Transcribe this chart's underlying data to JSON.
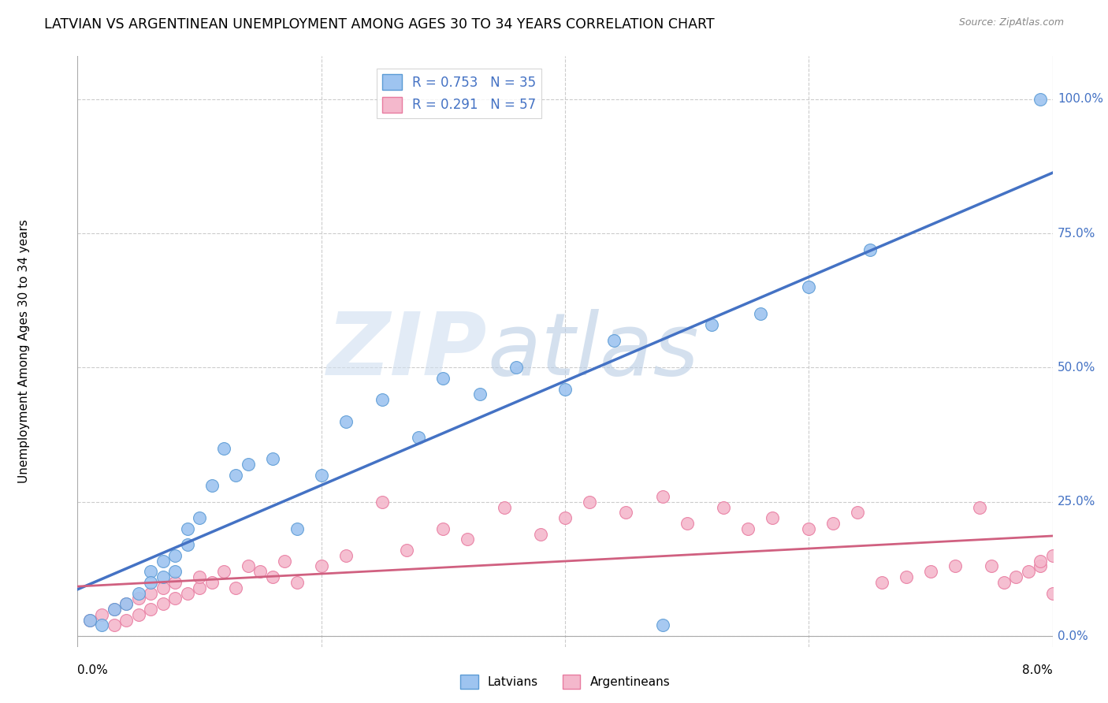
{
  "title": "LATVIAN VS ARGENTINEAN UNEMPLOYMENT AMONG AGES 30 TO 34 YEARS CORRELATION CHART",
  "source": "Source: ZipAtlas.com",
  "ylabel": "Unemployment Among Ages 30 to 34 years",
  "ytick_labels": [
    "0.0%",
    "25.0%",
    "50.0%",
    "75.0%",
    "100.0%"
  ],
  "ytick_values": [
    0.0,
    0.25,
    0.5,
    0.75,
    1.0
  ],
  "xlim": [
    0.0,
    0.08
  ],
  "ylim": [
    -0.02,
    1.08
  ],
  "latvian_fill_color": "#9ec4f0",
  "argentinean_fill_color": "#f4b8cc",
  "latvian_edge_color": "#5b9bd5",
  "argentinean_edge_color": "#e87ba0",
  "latvian_line_color": "#4472c4",
  "argentinean_line_color": "#d06080",
  "R_latvian": 0.753,
  "N_latvian": 35,
  "R_argentinean": 0.291,
  "N_argentinean": 57,
  "latvian_x": [
    0.001,
    0.002,
    0.003,
    0.004,
    0.005,
    0.006,
    0.006,
    0.007,
    0.007,
    0.008,
    0.008,
    0.009,
    0.009,
    0.01,
    0.011,
    0.012,
    0.013,
    0.014,
    0.016,
    0.018,
    0.02,
    0.022,
    0.025,
    0.028,
    0.03,
    0.033,
    0.036,
    0.04,
    0.044,
    0.048,
    0.052,
    0.056,
    0.06,
    0.065,
    0.079
  ],
  "latvian_y": [
    0.03,
    0.02,
    0.05,
    0.06,
    0.08,
    0.12,
    0.1,
    0.14,
    0.11,
    0.15,
    0.12,
    0.2,
    0.17,
    0.22,
    0.28,
    0.35,
    0.3,
    0.32,
    0.33,
    0.2,
    0.3,
    0.4,
    0.44,
    0.37,
    0.48,
    0.45,
    0.5,
    0.46,
    0.55,
    0.02,
    0.58,
    0.6,
    0.65,
    0.72,
    1.0
  ],
  "argentinean_x": [
    0.001,
    0.002,
    0.003,
    0.003,
    0.004,
    0.004,
    0.005,
    0.005,
    0.006,
    0.006,
    0.007,
    0.007,
    0.008,
    0.008,
    0.009,
    0.01,
    0.01,
    0.011,
    0.012,
    0.013,
    0.014,
    0.015,
    0.016,
    0.017,
    0.018,
    0.02,
    0.022,
    0.025,
    0.027,
    0.03,
    0.032,
    0.035,
    0.038,
    0.04,
    0.042,
    0.045,
    0.048,
    0.05,
    0.053,
    0.055,
    0.057,
    0.06,
    0.062,
    0.064,
    0.066,
    0.068,
    0.07,
    0.072,
    0.074,
    0.075,
    0.076,
    0.077,
    0.078,
    0.079,
    0.079,
    0.08,
    0.08
  ],
  "argentinean_y": [
    0.03,
    0.04,
    0.02,
    0.05,
    0.03,
    0.06,
    0.04,
    0.07,
    0.05,
    0.08,
    0.06,
    0.09,
    0.07,
    0.1,
    0.08,
    0.09,
    0.11,
    0.1,
    0.12,
    0.09,
    0.13,
    0.12,
    0.11,
    0.14,
    0.1,
    0.13,
    0.15,
    0.25,
    0.16,
    0.2,
    0.18,
    0.24,
    0.19,
    0.22,
    0.25,
    0.23,
    0.26,
    0.21,
    0.24,
    0.2,
    0.22,
    0.2,
    0.21,
    0.23,
    0.1,
    0.11,
    0.12,
    0.13,
    0.24,
    0.13,
    0.1,
    0.11,
    0.12,
    0.13,
    0.14,
    0.15,
    0.08
  ],
  "background_color": "#ffffff",
  "grid_color": "#cccccc",
  "label_color": "#4472c4"
}
